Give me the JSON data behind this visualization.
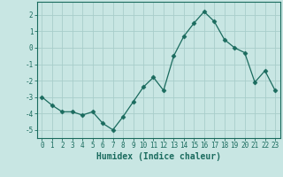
{
  "x": [
    0,
    1,
    2,
    3,
    4,
    5,
    6,
    7,
    8,
    9,
    10,
    11,
    12,
    13,
    14,
    15,
    16,
    17,
    18,
    19,
    20,
    21,
    22,
    23
  ],
  "y": [
    -3.0,
    -3.5,
    -3.9,
    -3.9,
    -4.1,
    -3.9,
    -4.6,
    -5.0,
    -4.2,
    -3.3,
    -2.4,
    -1.8,
    -2.6,
    -0.5,
    0.7,
    1.5,
    2.2,
    1.6,
    0.5,
    0.0,
    -0.3,
    -2.1,
    -1.4,
    -2.6
  ],
  "line_color": "#1a6b5e",
  "marker": "D",
  "marker_size": 2.5,
  "bg_color": "#c8e6e3",
  "grid_color": "#a8ceca",
  "xlabel": "Humidex (Indice chaleur)",
  "xlim": [
    -0.5,
    23.5
  ],
  "ylim": [
    -5.5,
    2.8
  ],
  "yticks": [
    -5,
    -4,
    -3,
    -2,
    -1,
    0,
    1,
    2
  ],
  "xticks": [
    0,
    1,
    2,
    3,
    4,
    5,
    6,
    7,
    8,
    9,
    10,
    11,
    12,
    13,
    14,
    15,
    16,
    17,
    18,
    19,
    20,
    21,
    22,
    23
  ],
  "tick_color": "#1a6b5e",
  "label_fontsize": 7,
  "tick_fontsize": 5.5
}
